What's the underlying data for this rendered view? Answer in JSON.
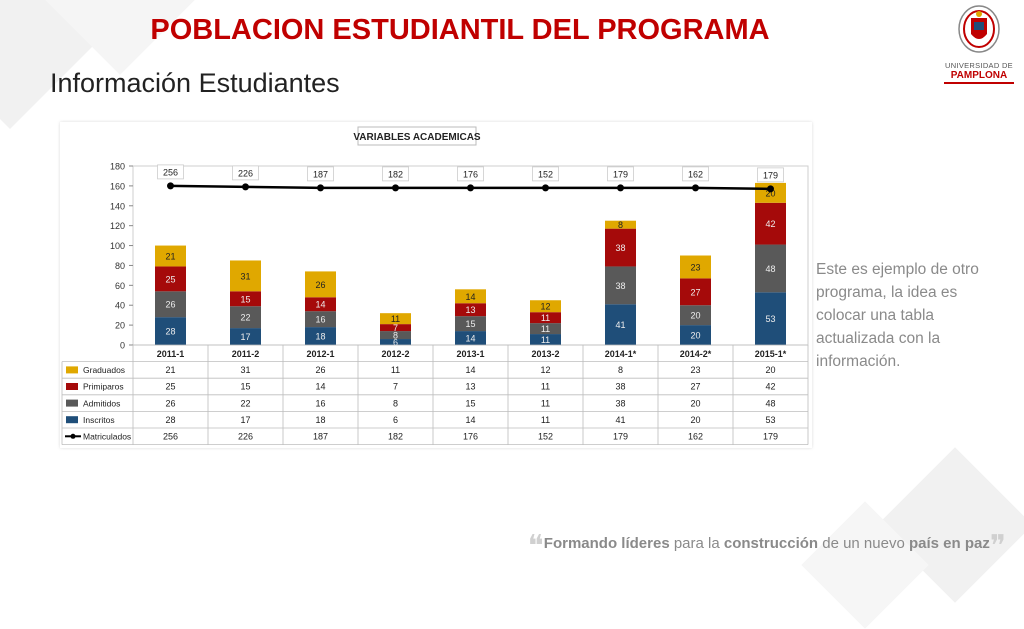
{
  "page": {
    "title": "POBLACION ESTUDIANTIL DEL PROGRAMA",
    "subtitle": "Información Estudiantes",
    "side_note": "Este es ejemplo de otro programa, la idea es colocar una tabla actualizada con la información.",
    "footer": {
      "parts": [
        "Formando",
        " líderes",
        " para la ",
        "construcción",
        " de un nuevo ",
        "país en paz"
      ]
    },
    "logo": {
      "line1": "UNIVERSIDAD DE",
      "line2": "PAMPLONA"
    }
  },
  "chart_data": {
    "type": "bar",
    "stacked": true,
    "title": "VARIABLES ACADEMICAS",
    "categories": [
      "2011-1",
      "2011-2",
      "2012-1",
      "2012-2",
      "2013-1",
      "2013-2",
      "2014-1*",
      "2014-2*",
      "2015-1*"
    ],
    "ylim": [
      0,
      180
    ],
    "yticks": [
      0,
      20,
      40,
      60,
      80,
      100,
      120,
      140,
      160,
      180
    ],
    "grid": false,
    "legend": "table-bottom",
    "series": [
      {
        "name": "Inscritos",
        "color": "#1f4e79",
        "values": [
          28,
          17,
          18,
          6,
          14,
          11,
          41,
          20,
          53
        ]
      },
      {
        "name": "Admitidos",
        "color": "#595959",
        "values": [
          26,
          22,
          16,
          8,
          15,
          11,
          38,
          20,
          48
        ]
      },
      {
        "name": "Primiparos",
        "color": "#a50a0a",
        "values": [
          25,
          15,
          14,
          7,
          13,
          11,
          38,
          27,
          42
        ]
      },
      {
        "name": "Graduados",
        "color": "#e0a800",
        "values": [
          21,
          31,
          26,
          11,
          14,
          12,
          8,
          23,
          20
        ]
      }
    ],
    "line_series": {
      "name": "Matriculados",
      "color": "#000000",
      "values": [
        256,
        226,
        187,
        182,
        176,
        152,
        179,
        162,
        179
      ],
      "display_y": [
        160,
        159,
        158,
        158,
        158,
        158,
        158,
        158,
        157
      ]
    },
    "table_order": [
      "Graduados",
      "Primiparos",
      "Admitidos",
      "Inscritos",
      "Matriculados"
    ]
  }
}
